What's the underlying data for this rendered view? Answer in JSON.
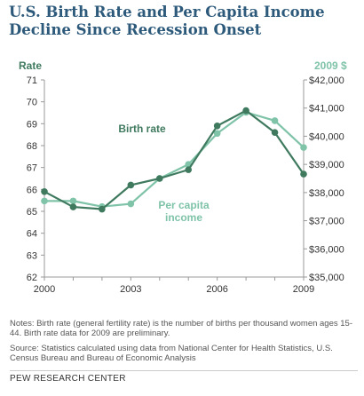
{
  "title": "U.S. Birth Rate and Per Capita Income Decline Since Recession Onset",
  "notes": "Notes: Birth rate (general fertility rate) is the number of births per thousand women ages 15-44. Birth rate data for 2009 are preliminary.",
  "source": "Source: Statistics calculated using data from National Center for Health Statistics, U.S. Census Bureau and Bureau of Economic Analysis",
  "footer": "PEW RESEARCH CENTER",
  "colors": {
    "birth_rate": "#3f7a5f",
    "income": "#7fc3a9",
    "title": "#2d5a7b"
  },
  "chart_data": {
    "type": "line",
    "x": [
      2000,
      2001,
      2002,
      2003,
      2004,
      2005,
      2006,
      2007,
      2008,
      2009
    ],
    "x_tick_labels": [
      "2000",
      "2003",
      "2006",
      "2009"
    ],
    "x_ticks": [
      2000,
      2003,
      2006,
      2009
    ],
    "xlim": [
      2000,
      2009
    ],
    "left_axis": {
      "label": "Rate",
      "ylim": [
        62,
        71
      ],
      "ticks": [
        "62",
        "63",
        "64",
        "65",
        "66",
        "67",
        "68",
        "69",
        "70",
        "71"
      ]
    },
    "right_axis": {
      "label": "2009 $",
      "ylim": [
        35000,
        42000
      ],
      "ticks": [
        "$35,000",
        "$36,000",
        "$37,000",
        "$38,000",
        "$39,000",
        "$40,000",
        "$41,000",
        "$42,000"
      ]
    },
    "series": [
      {
        "name": "Birth rate",
        "axis": "left",
        "values": [
          65.9,
          65.2,
          65.1,
          66.2,
          66.5,
          66.9,
          68.9,
          69.6,
          68.6,
          66.7
        ]
      },
      {
        "name": "Per capita income",
        "axis": "right",
        "values": [
          37700,
          37700,
          37500,
          37600,
          38500,
          39000,
          40100,
          40850,
          40550,
          39600
        ]
      }
    ],
    "annotations": [
      {
        "text": "Birth rate",
        "series": "Birth rate"
      },
      {
        "text": "Per capita",
        "series": "Per capita income"
      },
      {
        "text": "income",
        "series": "Per capita income"
      }
    ],
    "grid": false
  }
}
